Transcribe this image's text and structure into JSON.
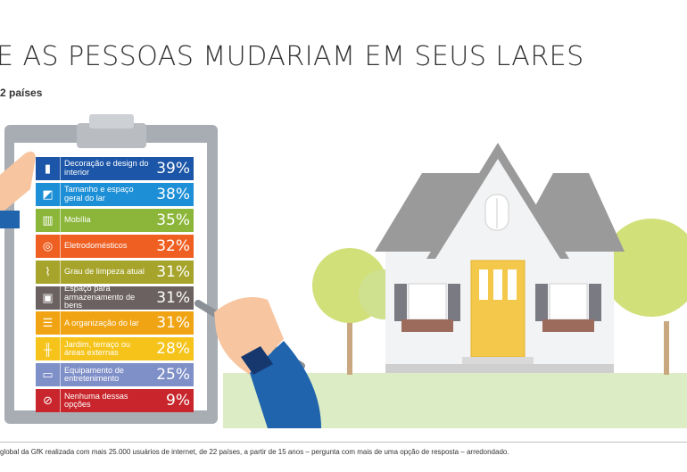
{
  "title": "E AS PESSOAS MUDARIAM EM SEUS LARES",
  "subtitle": "2 países",
  "footer": "global da GfK realizada com mais 25.000 usuários de internet, de 22 países, a partir de 15 anos – pergunta com mais de uma opção de resposta – arredondado.",
  "colors": {
    "row_0": "#1c56a8",
    "row_1": "#1c8fd6",
    "row_2": "#8bb63a",
    "row_3": "#ef5f22",
    "row_4": "#a6a42a",
    "row_5": "#6b6160",
    "row_6": "#f0a413",
    "row_7": "#f5c319",
    "row_8": "#7f8fc7",
    "row_9": "#c8262c"
  },
  "chart_data": {
    "type": "bar",
    "title": "E AS PESSOAS MUDARIAM EM SEUS LARES",
    "categories": [
      "Decoração e design do interior",
      "Tamanho e espaço geral do lar",
      "Mobília",
      "Eletrodomésticos",
      "Grau de limpeza atual",
      "Espaço para armazenamento de bens",
      "A organização do lar",
      "Jardim, terraço ou áreas externas",
      "Equipamento de entretenimento",
      "Nenhuma dessas opções"
    ],
    "values": [
      39,
      38,
      35,
      32,
      31,
      31,
      31,
      28,
      25,
      9
    ],
    "labels": [
      "39%",
      "38%",
      "35%",
      "32%",
      "31%",
      "31%",
      "31%",
      "28%",
      "25%",
      "9%"
    ],
    "icons": [
      "paint-roller-icon",
      "resize-icon",
      "cabinet-icon",
      "washing-machine-icon",
      "mop-icon",
      "storage-box-icon",
      "drawer-icon",
      "fence-icon",
      "tv-icon",
      "no-icon"
    ],
    "icon_glyphs": [
      "▮",
      "◩",
      "▥",
      "◎",
      "⌇",
      "▣",
      "☰",
      "╫",
      "▭",
      "⊘"
    ],
    "unit": "%"
  }
}
